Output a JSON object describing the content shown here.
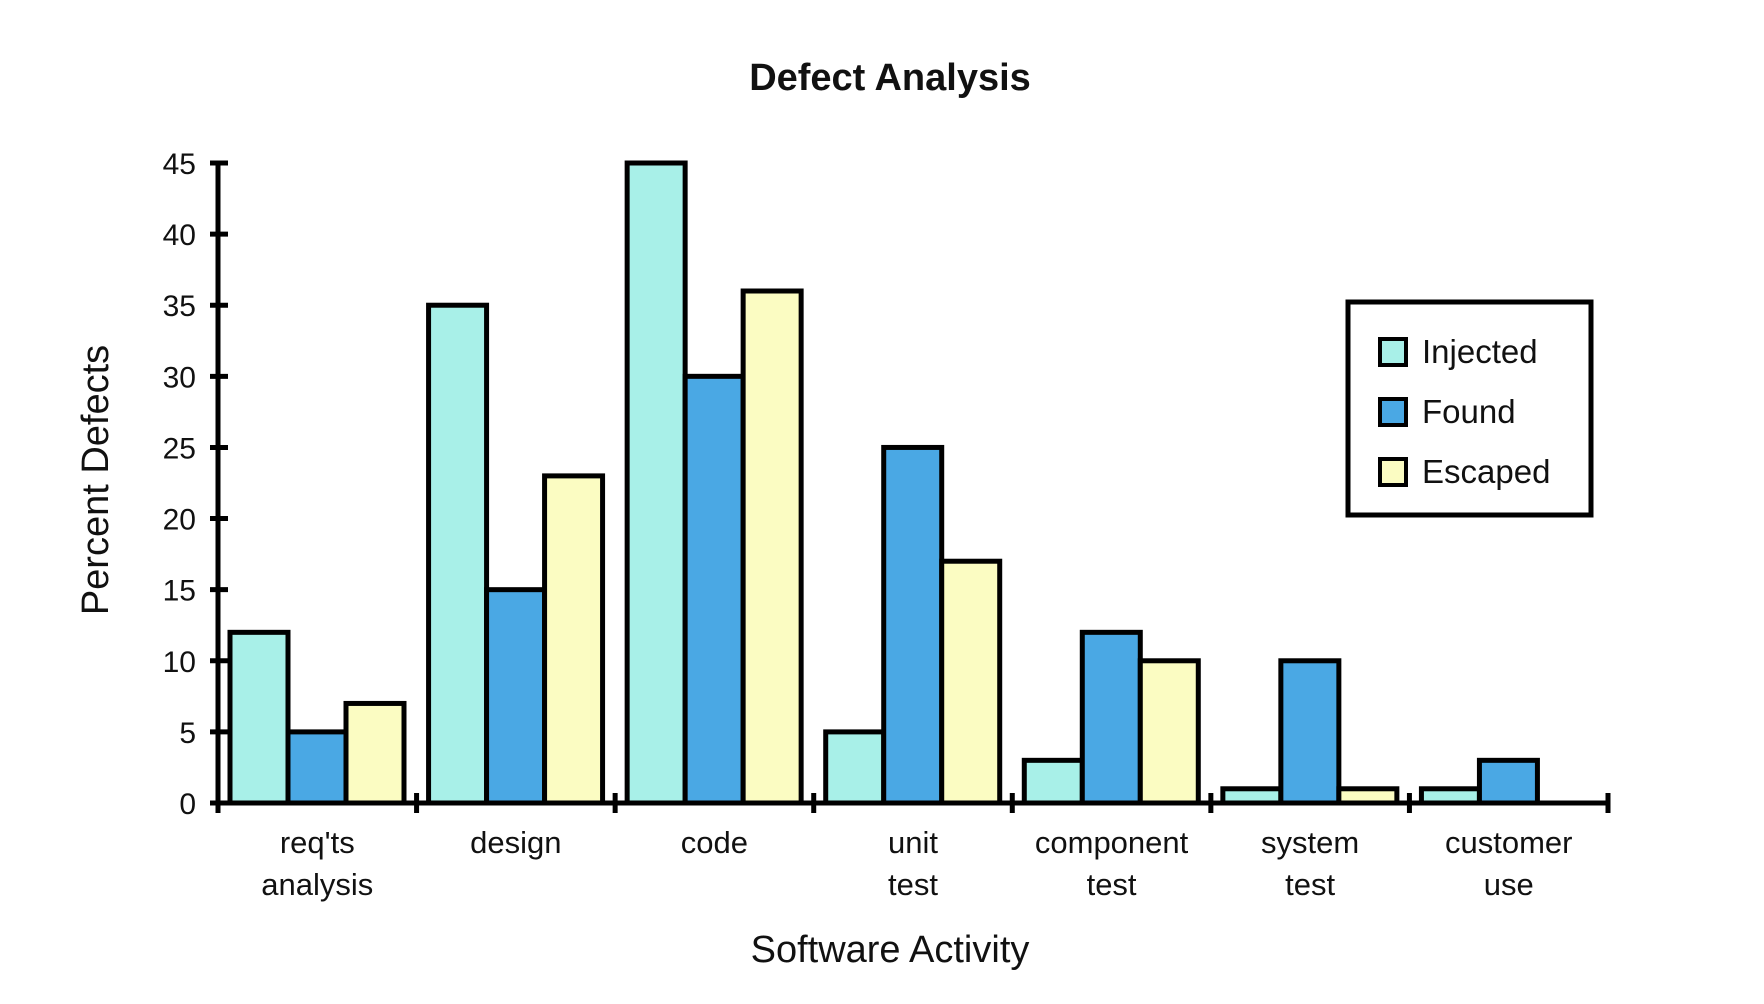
{
  "chart_data": {
    "type": "bar",
    "title": "Defect Analysis",
    "xlabel": "Software Activity",
    "ylabel": "Percent Defects",
    "ylim": [
      0,
      45
    ],
    "yticks": [
      "0",
      "5",
      "10",
      "15",
      "20",
      "25",
      "30",
      "35",
      "40",
      "45"
    ],
    "categories": [
      [
        "req'ts",
        "analysis"
      ],
      [
        "design"
      ],
      [
        "code"
      ],
      [
        "unit",
        "test"
      ],
      [
        "component",
        "test"
      ],
      [
        "system",
        "test"
      ],
      [
        "customer",
        "use"
      ]
    ],
    "series": [
      {
        "name": "Injected",
        "color": "#a8f0e8",
        "values": [
          12,
          35,
          45,
          5,
          3,
          1,
          1
        ]
      },
      {
        "name": "Found",
        "color": "#4aa8e4",
        "values": [
          5,
          15,
          30,
          25,
          12,
          10,
          3
        ]
      },
      {
        "name": "Escaped",
        "color": "#fbfcc2",
        "values": [
          7,
          23,
          36,
          17,
          10,
          1,
          0
        ]
      }
    ],
    "legend_position": "right",
    "grid": false
  }
}
